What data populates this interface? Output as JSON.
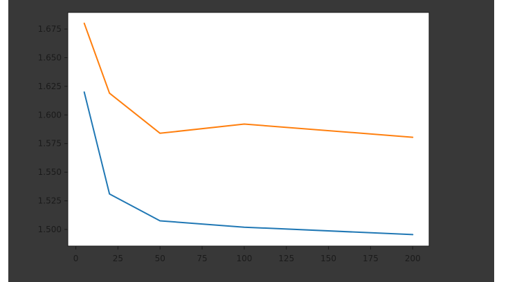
{
  "colors": {
    "background": "#383838",
    "plot_area": "#ffffff",
    "text": "#1a1a1a",
    "series_1": "#1f77b4",
    "series_2": "#ff7f0e"
  },
  "chart_data": {
    "type": "line",
    "title": "",
    "xlabel": "",
    "ylabel": "",
    "xlim": [
      -4.75,
      209.75
    ],
    "ylim": [
      1.4855,
      1.6895
    ],
    "xticks": [
      0,
      25,
      50,
      75,
      100,
      125,
      150,
      175,
      200
    ],
    "xtick_labels": [
      "0",
      "25",
      "50",
      "75",
      "100",
      "125",
      "150",
      "175",
      "200"
    ],
    "yticks": [
      1.5,
      1.525,
      1.55,
      1.575,
      1.6,
      1.625,
      1.65,
      1.675
    ],
    "ytick_labels": [
      "1.500",
      "1.525",
      "1.550",
      "1.575",
      "1.600",
      "1.625",
      "1.650",
      "1.675"
    ],
    "grid": false,
    "legend": "none",
    "x": [
      5,
      20,
      50,
      100,
      200
    ],
    "series": [
      {
        "color": "#1f77b4",
        "values": [
          1.62,
          1.531,
          1.5075,
          1.502,
          1.4955
        ]
      },
      {
        "color": "#ff7f0e",
        "values": [
          1.68,
          1.619,
          1.584,
          1.592,
          1.5805
        ]
      }
    ]
  }
}
